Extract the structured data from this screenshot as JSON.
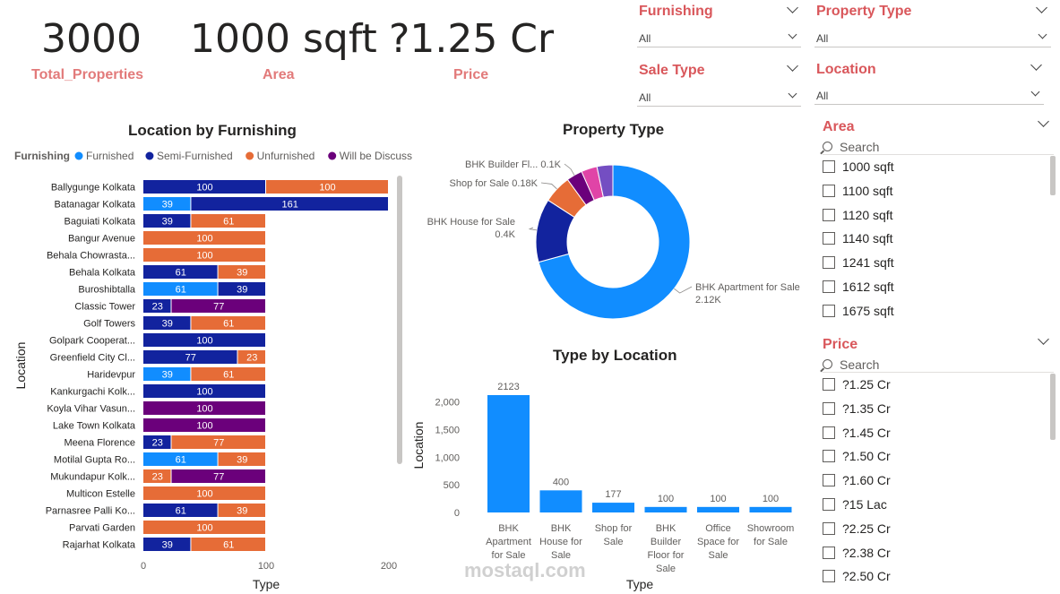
{
  "kpis": [
    {
      "value": "3000",
      "label": "Total_Properties"
    },
    {
      "value": "1000 sqft",
      "label": "Area"
    },
    {
      "value": "?1.25 Cr",
      "label": "Price"
    }
  ],
  "slicers": {
    "furnishing": {
      "title": "Furnishing",
      "selected": "All"
    },
    "property_type": {
      "title": "Property Type",
      "selected": "All"
    },
    "sale_type": {
      "title": "Sale Type",
      "selected": "All"
    },
    "location": {
      "title": "Location",
      "selected": "All"
    },
    "area": {
      "title": "Area",
      "search_placeholder": "Search",
      "items": [
        "1000 sqft",
        "1100 sqft",
        "1120 sqft",
        "1140 sqft",
        "1241 sqft",
        "1612 sqft",
        "1675 sqft"
      ]
    },
    "price": {
      "title": "Price",
      "search_placeholder": "Search",
      "items": [
        "?1.25 Cr",
        "?1.35 Cr",
        "?1.45 Cr",
        "?1.50 Cr",
        "?1.60 Cr",
        "?15 Lac",
        "?2.25 Cr",
        "?2.38 Cr",
        "?2.50 Cr"
      ]
    }
  },
  "colors": {
    "furnished": "#118dff",
    "semi_furnished": "#12239e",
    "unfurnished": "#e66c37",
    "will_be_discussed": "#6b007b",
    "accent_title": "#d9575b"
  },
  "watermark": {
    "text": "mostaql.com"
  },
  "chart_data": [
    {
      "type": "bar",
      "orientation": "horizontal",
      "stacked": true,
      "title": "Location by Furnishing",
      "xlabel": "Type",
      "ylabel": "Location",
      "legend_title": "Furnishing",
      "legend_position": "top",
      "xlim": [
        0,
        200
      ],
      "xticks": [
        0,
        100,
        200
      ],
      "categories": [
        "Ballygunge Kolkata",
        "Batanagar Kolkata",
        "Baguiati Kolkata",
        "Bangur Avenue",
        "Behala Chowrasta...",
        "Behala Kolkata",
        "Buroshibtalla",
        "Classic Tower",
        "Golf Towers",
        "Golpark Cooperat...",
        "Greenfield City Cl...",
        "Haridevpur",
        "Kankurgachi Kolk...",
        "Koyla Vihar Vasun...",
        "Lake Town Kolkata",
        "Meena Florence",
        "Motilal Gupta Ro...",
        "Mukundapur Kolk...",
        "Multicon Estelle",
        "Parnasree Palli Ko...",
        "Parvati Garden",
        "Rajarhat Kolkata"
      ],
      "series": [
        {
          "name": "Furnished",
          "color": "#118dff",
          "values": [
            0,
            39,
            0,
            0,
            0,
            0,
            61,
            0,
            0,
            0,
            0,
            39,
            0,
            0,
            0,
            0,
            61,
            0,
            0,
            0,
            0,
            0
          ]
        },
        {
          "name": "Semi-Furnished",
          "color": "#12239e",
          "values": [
            100,
            161,
            39,
            0,
            0,
            61,
            39,
            23,
            39,
            100,
            77,
            0,
            100,
            0,
            0,
            23,
            0,
            0,
            0,
            61,
            0,
            39
          ]
        },
        {
          "name": "Unfurnished",
          "color": "#e66c37",
          "values": [
            100,
            0,
            61,
            100,
            100,
            39,
            0,
            0,
            61,
            0,
            23,
            61,
            0,
            0,
            0,
            77,
            39,
            23,
            100,
            39,
            100,
            61
          ]
        },
        {
          "name": "Will be Discussed",
          "color": "#6b007b",
          "values": [
            0,
            0,
            0,
            0,
            0,
            0,
            0,
            77,
            0,
            0,
            0,
            0,
            0,
            100,
            100,
            0,
            0,
            77,
            0,
            0,
            0,
            0
          ]
        }
      ]
    },
    {
      "type": "pie",
      "variant": "donut",
      "title": "Property Type",
      "slices": [
        {
          "name": "BHK Apartment for Sale",
          "value": 2123,
          "label": "2.12K",
          "color": "#118dff"
        },
        {
          "name": "BHK House for Sale",
          "value": 400,
          "label": "0.4K",
          "color": "#12239e"
        },
        {
          "name": "Shop for Sale",
          "value": 177,
          "label": "0.18K",
          "color": "#e66c37"
        },
        {
          "name": "BHK Builder Fl...",
          "value": 100,
          "label": "0.1K",
          "color": "#6b007b"
        },
        {
          "name": "Office Space for Sale",
          "value": 100,
          "label": "",
          "color": "#e044a7"
        },
        {
          "name": "Showroom for Sale",
          "value": 100,
          "label": "",
          "color": "#744ec2"
        }
      ]
    },
    {
      "type": "bar",
      "orientation": "vertical",
      "title": "Type by Location",
      "xlabel": "Type",
      "ylabel": "Location",
      "ylim": [
        0,
        2300
      ],
      "yticks": [
        0,
        500,
        1000,
        1500,
        2000
      ],
      "ytick_labels": [
        "0",
        "500",
        "1,000",
        "1,500",
        "2,000"
      ],
      "color": "#118dff",
      "categories": [
        [
          "BHK",
          "Apartment",
          "for Sale"
        ],
        [
          "BHK",
          "House for",
          "Sale"
        ],
        [
          "Shop for",
          "Sale"
        ],
        [
          "BHK",
          "Builder",
          "Floor for",
          "Sale"
        ],
        [
          "Office",
          "Space for",
          "Sale"
        ],
        [
          "Showroom",
          "for Sale"
        ]
      ],
      "values": [
        2123,
        400,
        177,
        100,
        100,
        100
      ]
    }
  ]
}
